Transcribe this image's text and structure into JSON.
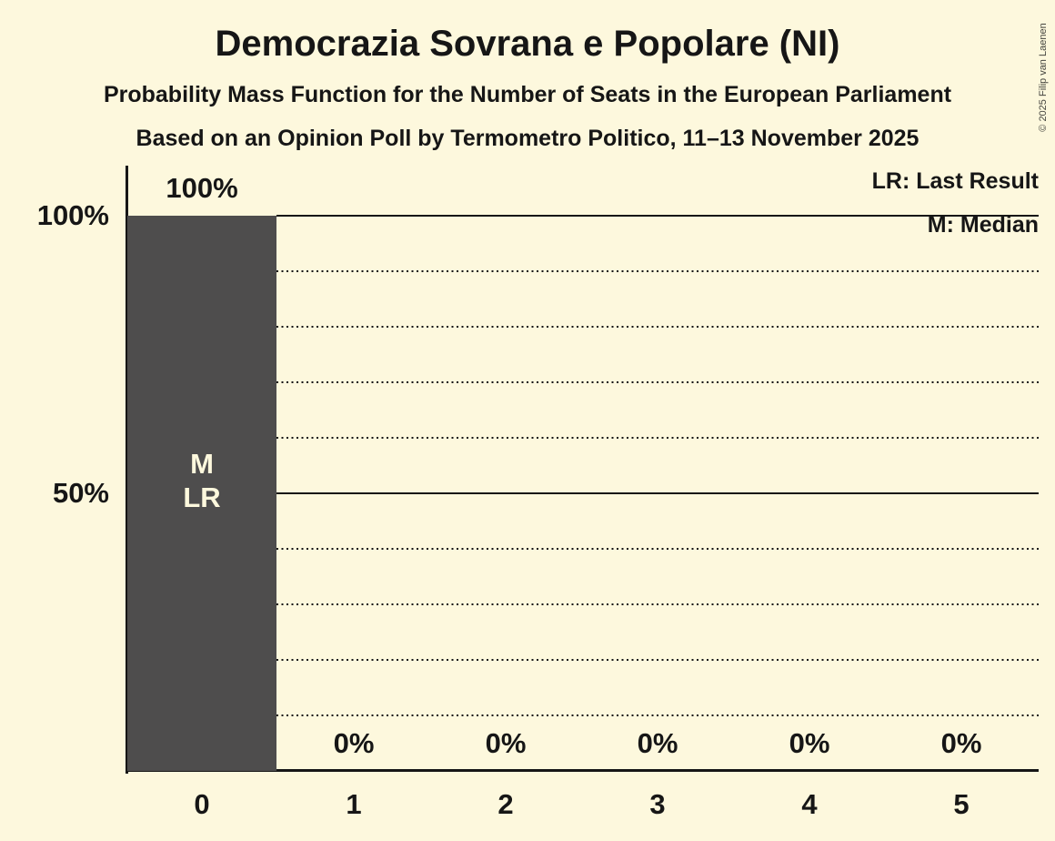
{
  "page": {
    "background": "#FDF8DD",
    "text_color": "#161616"
  },
  "header": {
    "title": "Democrazia Sovrana e Popolare (NI)",
    "subtitle": "Probability Mass Function for the Number of Seats in the European Parliament",
    "source_line": "Based on an Opinion Poll by Termometro Politico, 11–13 November 2025"
  },
  "legend": {
    "lr": "LR: Last Result",
    "m": "M: Median"
  },
  "copyright": "© 2025 Filip van Laenen",
  "chart_data": {
    "type": "bar",
    "title": "Democrazia Sovrana e Popolare (NI)",
    "xlabel": "",
    "ylabel": "",
    "categories": [
      "0",
      "1",
      "2",
      "3",
      "4",
      "5"
    ],
    "values": [
      100,
      0,
      0,
      0,
      0,
      0
    ],
    "bar_value_labels": [
      "100%",
      "0%",
      "0%",
      "0%",
      "0%",
      "0%"
    ],
    "ylim": [
      0,
      100
    ],
    "y_axis_ticks": [
      {
        "label": "100%",
        "value": 100
      },
      {
        "label": "50%",
        "value": 50
      }
    ],
    "gridlines": {
      "solid_values": [
        100,
        50
      ],
      "dotted_values": [
        90,
        80,
        70,
        60,
        40,
        30,
        20,
        10
      ]
    },
    "legend_position": "top-right",
    "legend_entries": [
      "LR: Last Result",
      "M: Median"
    ],
    "annotations": [
      {
        "bar": "0",
        "lines": [
          "M",
          "LR"
        ]
      }
    ],
    "colors": {
      "bar": "#4E4D4D",
      "background": "#FDF8DD",
      "text": "#161616",
      "bar_label": "#FDF8DD"
    }
  }
}
